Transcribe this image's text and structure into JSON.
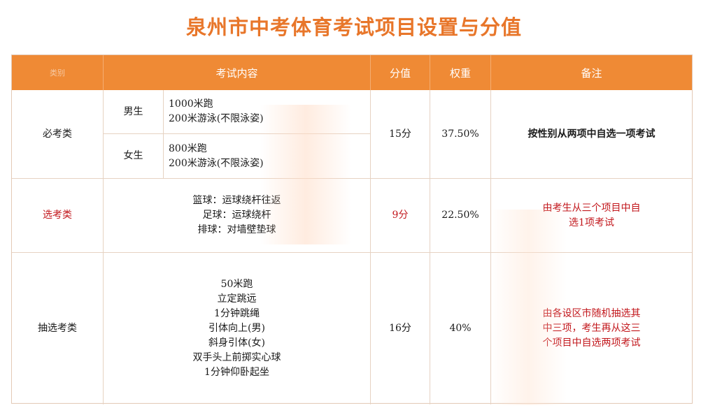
{
  "title": "泉州市中考体育考试项目设置与分值",
  "header": {
    "category": "类别",
    "content": "考试内容",
    "score": "分值",
    "weight": "权重",
    "remark": "备注"
  },
  "rows": {
    "required": {
      "category": "必考类",
      "male_label": "男生",
      "male_items": [
        "1000米跑",
        "200米游泳(不限泳姿)"
      ],
      "female_label": "女生",
      "female_items": [
        "800米跑",
        "200米游泳(不限泳姿)"
      ],
      "score": "15分",
      "weight": "37.50%",
      "remark": "按性别从两项中自选一项考试"
    },
    "elective": {
      "category": "选考类",
      "items": [
        "篮球：运球绕杆往返",
        "足球：运球绕杆",
        "排球：对墙壁垫球"
      ],
      "score": "9分",
      "weight": "22.50%",
      "remark_lines": [
        "由考生从三个项目中自",
        "选1项考试"
      ]
    },
    "lottery": {
      "category": "抽选考类",
      "items": [
        "50米跑",
        "立定跳远",
        "1分钟跳绳",
        "引体向上(男)",
        "斜身引体(女)",
        "双手头上前掷实心球",
        "1分钟仰卧起坐"
      ],
      "score": "16分",
      "weight": "40%",
      "remark_lines": [
        "由各设区市随机抽选其",
        "中三项，考生再从这三",
        "个项目中自选两项考试"
      ]
    }
  },
  "colors": {
    "title": "#e8762a",
    "header_bg": "#ef8a35",
    "highlight_red": "#c2171c"
  }
}
